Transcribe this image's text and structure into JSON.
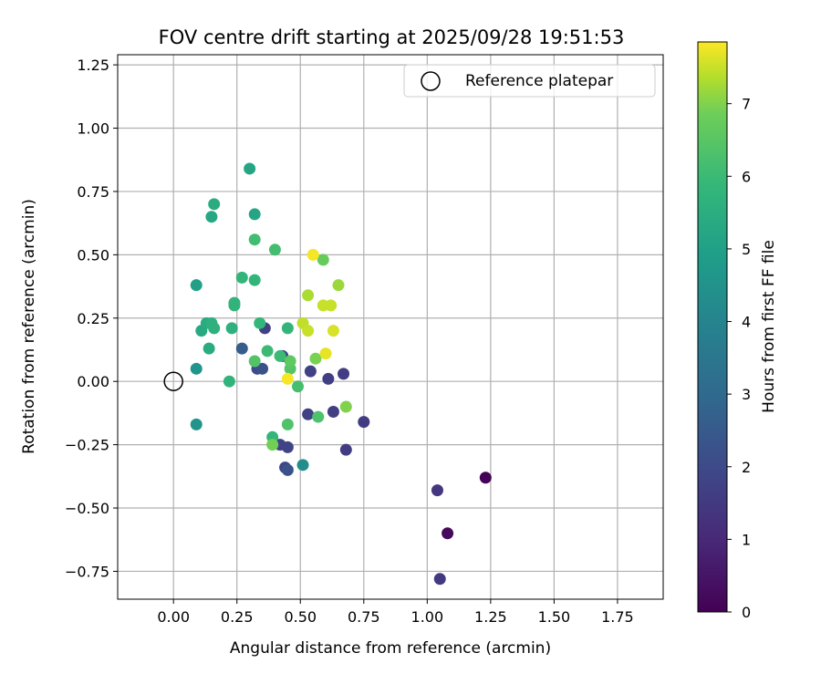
{
  "chart_data": {
    "type": "scatter",
    "title": "FOV centre drift starting at 2025/09/28 19:51:53",
    "xlabel": "Angular distance from reference (arcmin)",
    "ylabel": "Rotation from reference (arcmin)",
    "xlim": [
      -0.22,
      1.93
    ],
    "ylim": [
      -0.86,
      1.29
    ],
    "xticks": [
      0.0,
      0.25,
      0.5,
      0.75,
      1.0,
      1.25,
      1.5,
      1.75
    ],
    "xtick_labels": [
      "0.00",
      "0.25",
      "0.50",
      "0.75",
      "1.00",
      "1.25",
      "1.50",
      "1.75"
    ],
    "yticks": [
      1.25,
      1.0,
      0.75,
      0.5,
      0.25,
      0.0,
      -0.25,
      -0.5,
      -0.75
    ],
    "ytick_labels": [
      "1.25",
      "1.00",
      "0.75",
      "0.50",
      "0.25",
      "0.00",
      "−0.25",
      "−0.50",
      "−0.75"
    ],
    "grid": true,
    "legend": {
      "position": "top-right",
      "entries": [
        "Reference platepar"
      ]
    },
    "reference_point": {
      "x": 0.0,
      "y": 0.0,
      "label": "Reference platepar"
    },
    "colorbar": {
      "label": "Hours from first FF file",
      "min": 0,
      "max": 7.85,
      "ticks": [
        0,
        1,
        2,
        3,
        4,
        5,
        6,
        7
      ],
      "tick_labels": [
        "0",
        "1",
        "2",
        "3",
        "4",
        "5",
        "6",
        "7"
      ],
      "colormap": "viridis"
    },
    "points": [
      {
        "x": 1.23,
        "y": -0.38,
        "h": 0.05
      },
      {
        "x": 1.08,
        "y": -0.6,
        "h": 0.2
      },
      {
        "x": 1.04,
        "y": -0.43,
        "h": 1.4
      },
      {
        "x": 1.05,
        "y": -0.78,
        "h": 1.5
      },
      {
        "x": 0.75,
        "y": -0.16,
        "h": 1.6
      },
      {
        "x": 0.68,
        "y": -0.27,
        "h": 1.6
      },
      {
        "x": 0.67,
        "y": 0.03,
        "h": 1.6
      },
      {
        "x": 0.63,
        "y": -0.12,
        "h": 1.65
      },
      {
        "x": 0.61,
        "y": 0.01,
        "h": 1.65
      },
      {
        "x": 0.53,
        "y": -0.13,
        "h": 1.7
      },
      {
        "x": 0.54,
        "y": 0.04,
        "h": 1.75
      },
      {
        "x": 0.36,
        "y": 0.21,
        "h": 1.7
      },
      {
        "x": 0.45,
        "y": -0.26,
        "h": 1.8
      },
      {
        "x": 0.42,
        "y": -0.25,
        "h": 1.8
      },
      {
        "x": 0.44,
        "y": -0.34,
        "h": 1.8
      },
      {
        "x": 0.43,
        "y": 0.1,
        "h": 1.85
      },
      {
        "x": 0.33,
        "y": 0.05,
        "h": 2.0
      },
      {
        "x": 0.35,
        "y": 0.05,
        "h": 2.2
      },
      {
        "x": 0.45,
        "y": -0.35,
        "h": 2.2
      },
      {
        "x": 0.27,
        "y": 0.13,
        "h": 2.6
      },
      {
        "x": 0.51,
        "y": -0.33,
        "h": 4.3
      },
      {
        "x": 0.09,
        "y": -0.17,
        "h": 4.6
      },
      {
        "x": 0.09,
        "y": 0.05,
        "h": 4.6
      },
      {
        "x": 0.09,
        "y": 0.38,
        "h": 5.0
      },
      {
        "x": 0.3,
        "y": 0.84,
        "h": 5.2
      },
      {
        "x": 0.32,
        "y": 0.66,
        "h": 5.2
      },
      {
        "x": 0.15,
        "y": 0.65,
        "h": 5.25
      },
      {
        "x": 0.16,
        "y": 0.7,
        "h": 5.45
      },
      {
        "x": 0.11,
        "y": 0.2,
        "h": 5.35
      },
      {
        "x": 0.13,
        "y": 0.23,
        "h": 5.4
      },
      {
        "x": 0.14,
        "y": 0.13,
        "h": 5.45
      },
      {
        "x": 0.15,
        "y": 0.23,
        "h": 5.6
      },
      {
        "x": 0.16,
        "y": 0.21,
        "h": 5.6
      },
      {
        "x": 0.23,
        "y": 0.21,
        "h": 5.6
      },
      {
        "x": 0.24,
        "y": 0.3,
        "h": 5.75
      },
      {
        "x": 0.24,
        "y": 0.31,
        "h": 5.75
      },
      {
        "x": 0.22,
        "y": 0.0,
        "h": 5.75
      },
      {
        "x": 0.27,
        "y": 0.41,
        "h": 5.8
      },
      {
        "x": 0.32,
        "y": 0.4,
        "h": 5.8
      },
      {
        "x": 0.34,
        "y": 0.23,
        "h": 5.85
      },
      {
        "x": 0.39,
        "y": -0.22,
        "h": 5.85
      },
      {
        "x": 0.45,
        "y": 0.21,
        "h": 5.8
      },
      {
        "x": 0.37,
        "y": 0.12,
        "h": 6.0
      },
      {
        "x": 0.42,
        "y": 0.1,
        "h": 6.0
      },
      {
        "x": 0.32,
        "y": 0.56,
        "h": 6.1
      },
      {
        "x": 0.4,
        "y": 0.52,
        "h": 6.15
      },
      {
        "x": 0.49,
        "y": -0.02,
        "h": 6.2
      },
      {
        "x": 0.57,
        "y": -0.14,
        "h": 6.3
      },
      {
        "x": 0.45,
        "y": -0.17,
        "h": 6.35
      },
      {
        "x": 0.32,
        "y": 0.08,
        "h": 6.4
      },
      {
        "x": 0.46,
        "y": 0.05,
        "h": 6.45
      },
      {
        "x": 0.46,
        "y": 0.08,
        "h": 6.6
      },
      {
        "x": 0.39,
        "y": -0.25,
        "h": 6.9
      },
      {
        "x": 0.56,
        "y": 0.09,
        "h": 6.95
      },
      {
        "x": 0.59,
        "y": 0.48,
        "h": 6.75
      },
      {
        "x": 0.65,
        "y": 0.38,
        "h": 7.2
      },
      {
        "x": 0.68,
        "y": -0.1,
        "h": 7.0
      },
      {
        "x": 0.53,
        "y": 0.34,
        "h": 7.3
      },
      {
        "x": 0.51,
        "y": 0.23,
        "h": 7.45
      },
      {
        "x": 0.53,
        "y": 0.2,
        "h": 7.5
      },
      {
        "x": 0.59,
        "y": 0.3,
        "h": 7.5
      },
      {
        "x": 0.62,
        "y": 0.3,
        "h": 7.5
      },
      {
        "x": 0.63,
        "y": 0.2,
        "h": 7.6
      },
      {
        "x": 0.6,
        "y": 0.11,
        "h": 7.7
      },
      {
        "x": 0.55,
        "y": 0.5,
        "h": 7.8
      },
      {
        "x": 0.45,
        "y": 0.01,
        "h": 7.8
      }
    ]
  }
}
